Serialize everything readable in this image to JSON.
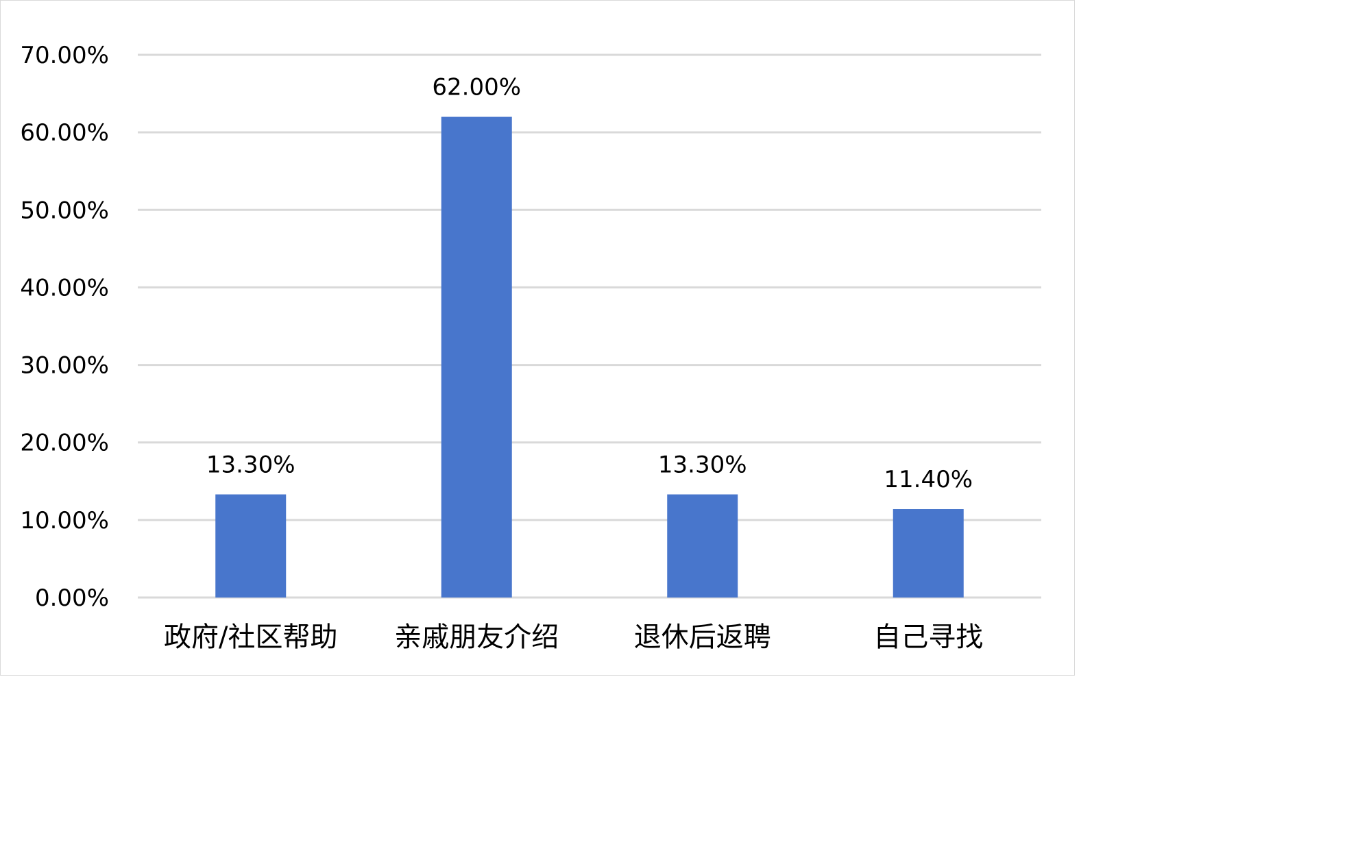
{
  "chart_data": {
    "type": "bar",
    "title": "",
    "xlabel": "",
    "ylabel": "",
    "categories": [
      "政府/社区帮助",
      "亲戚朋友介绍",
      "退休后返聘",
      "自己寻找"
    ],
    "values": [
      13.3,
      62.0,
      13.3,
      11.4
    ],
    "data_labels": [
      "13.30%",
      "62.00%",
      "13.30%",
      "11.40%"
    ],
    "ylim": [
      0,
      70
    ],
    "y_ticks": [
      0,
      10,
      20,
      30,
      40,
      50,
      60,
      70
    ],
    "y_tick_labels": [
      "0.00%",
      "10.00%",
      "20.00%",
      "30.00%",
      "40.00%",
      "50.00%",
      "60.00%",
      "70.00%"
    ],
    "grid": true,
    "legend": "none",
    "colors": {
      "bar": "#4876cc",
      "grid": "#d9d9d9",
      "text": "#000000"
    }
  }
}
